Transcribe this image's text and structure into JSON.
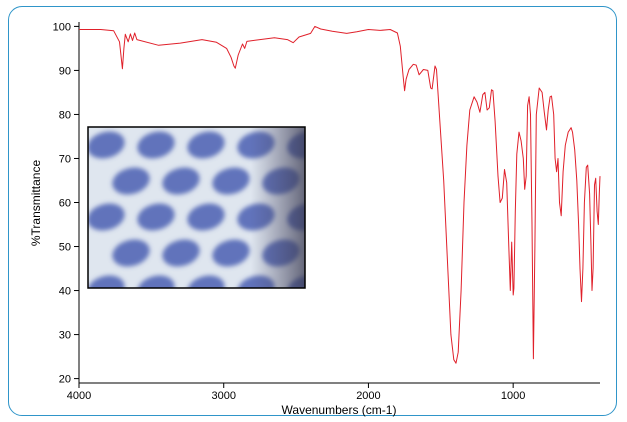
{
  "chart_data": {
    "type": "line",
    "xlabel": "Wavenumbers (cm-1)",
    "ylabel": "%Transmittance",
    "xlim": [
      4000,
      400
    ],
    "ylim": [
      19,
      101
    ],
    "x_reversed": true,
    "x_ticks": [
      4000,
      3000,
      2000,
      1000
    ],
    "y_ticks": [
      20,
      30,
      40,
      50,
      60,
      70,
      80,
      90,
      100
    ],
    "grid": false,
    "series": [
      {
        "color": "#e0202a",
        "points": [
          [
            4000,
            99.3
          ],
          [
            3850,
            99.3
          ],
          [
            3760,
            99.0
          ],
          [
            3720,
            96.5
          ],
          [
            3700,
            90.4
          ],
          [
            3690,
            95.0
          ],
          [
            3680,
            98.2
          ],
          [
            3660,
            96.5
          ],
          [
            3645,
            98.3
          ],
          [
            3630,
            96.8
          ],
          [
            3615,
            98.5
          ],
          [
            3600,
            97.0
          ],
          [
            3450,
            95.7
          ],
          [
            3300,
            96.2
          ],
          [
            3150,
            97.0
          ],
          [
            3050,
            96.4
          ],
          [
            2980,
            95.0
          ],
          [
            2950,
            93.0
          ],
          [
            2930,
            91.0
          ],
          [
            2920,
            90.5
          ],
          [
            2900,
            93.5
          ],
          [
            2870,
            96.0
          ],
          [
            2855,
            95.0
          ],
          [
            2840,
            96.6
          ],
          [
            2750,
            97.0
          ],
          [
            2650,
            97.4
          ],
          [
            2560,
            97.0
          ],
          [
            2520,
            96.3
          ],
          [
            2480,
            97.6
          ],
          [
            2400,
            98.4
          ],
          [
            2370,
            100.0
          ],
          [
            2330,
            99.4
          ],
          [
            2250,
            98.9
          ],
          [
            2150,
            98.4
          ],
          [
            2080,
            98.8
          ],
          [
            2000,
            99.3
          ],
          [
            1920,
            99.1
          ],
          [
            1850,
            99.3
          ],
          [
            1800,
            98.5
          ],
          [
            1780,
            95.5
          ],
          [
            1760,
            88.5
          ],
          [
            1750,
            85.4
          ],
          [
            1740,
            88.0
          ],
          [
            1720,
            90.2
          ],
          [
            1690,
            91.4
          ],
          [
            1670,
            91.2
          ],
          [
            1650,
            89.0
          ],
          [
            1620,
            90.2
          ],
          [
            1590,
            90.0
          ],
          [
            1570,
            86.0
          ],
          [
            1560,
            85.8
          ],
          [
            1540,
            91.0
          ],
          [
            1530,
            90.2
          ],
          [
            1510,
            80.0
          ],
          [
            1480,
            65.0
          ],
          [
            1450,
            44.0
          ],
          [
            1430,
            30.0
          ],
          [
            1410,
            24.3
          ],
          [
            1395,
            23.5
          ],
          [
            1380,
            26.0
          ],
          [
            1360,
            40.0
          ],
          [
            1340,
            60.0
          ],
          [
            1320,
            73.0
          ],
          [
            1300,
            81.0
          ],
          [
            1270,
            84.0
          ],
          [
            1250,
            82.8
          ],
          [
            1230,
            80.5
          ],
          [
            1210,
            84.5
          ],
          [
            1195,
            85.0
          ],
          [
            1180,
            81.0
          ],
          [
            1165,
            81.5
          ],
          [
            1150,
            85.6
          ],
          [
            1140,
            85.4
          ],
          [
            1125,
            78.5
          ],
          [
            1105,
            66.0
          ],
          [
            1090,
            60.0
          ],
          [
            1075,
            61.0
          ],
          [
            1060,
            67.5
          ],
          [
            1045,
            64.5
          ],
          [
            1030,
            50.0
          ],
          [
            1020,
            40.0
          ],
          [
            1010,
            51.0
          ],
          [
            1000,
            39.0
          ],
          [
            995,
            40.5
          ],
          [
            985,
            58.0
          ],
          [
            975,
            71.0
          ],
          [
            960,
            76.0
          ],
          [
            945,
            74.0
          ],
          [
            930,
            70.0
          ],
          [
            920,
            63.0
          ],
          [
            910,
            66.0
          ],
          [
            900,
            82.0
          ],
          [
            890,
            84.0
          ],
          [
            880,
            80.0
          ],
          [
            870,
            55.0
          ],
          [
            860,
            24.5
          ],
          [
            850,
            50.0
          ],
          [
            840,
            80.0
          ],
          [
            820,
            86.0
          ],
          [
            800,
            85.0
          ],
          [
            785,
            80.5
          ],
          [
            770,
            76.5
          ],
          [
            758,
            81.0
          ],
          [
            745,
            84.0
          ],
          [
            735,
            84.2
          ],
          [
            720,
            80.0
          ],
          [
            710,
            70.0
          ],
          [
            700,
            67.0
          ],
          [
            690,
            70.0
          ],
          [
            680,
            60.0
          ],
          [
            668,
            57.0
          ],
          [
            655,
            67.0
          ],
          [
            640,
            73.0
          ],
          [
            620,
            76.0
          ],
          [
            600,
            77.0
          ],
          [
            590,
            76.0
          ],
          [
            575,
            72.0
          ],
          [
            560,
            65.0
          ],
          [
            548,
            55.0
          ],
          [
            538,
            45.0
          ],
          [
            528,
            37.5
          ],
          [
            518,
            45.0
          ],
          [
            508,
            60.0
          ],
          [
            495,
            68.0
          ],
          [
            485,
            68.5
          ],
          [
            472,
            62.0
          ],
          [
            462,
            50.0
          ],
          [
            455,
            40.0
          ],
          [
            448,
            45.0
          ],
          [
            438,
            64.0
          ],
          [
            430,
            65.5
          ],
          [
            420,
            58.0
          ],
          [
            412,
            55.0
          ],
          [
            405,
            62.0
          ],
          [
            400,
            66.0
          ]
        ]
      }
    ]
  },
  "inset_image": {
    "description_icon": "photo-icon",
    "colors": {
      "background": "#dfe6ef",
      "blob": "#4a5fb3",
      "shadow": "#4b4a6b"
    }
  }
}
